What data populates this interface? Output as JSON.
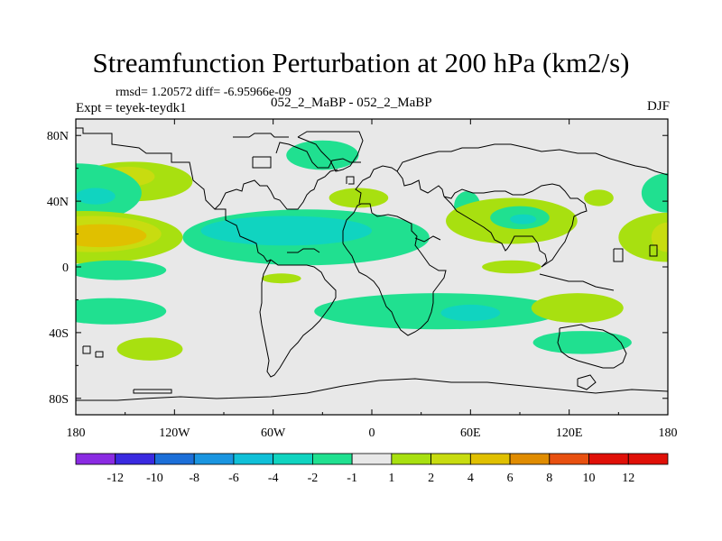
{
  "chart_data": {
    "type": "heatmap",
    "title": "Streamfunction Perturbation at 200 hPa (km2/s)",
    "stats_line": "rmsd= 1.20572 diff= -6.95966e-09",
    "experiment_label": "Expt = teyek-teydk1",
    "center_label": "052_2_MaBP - 052_2_MaBP",
    "season": "DJF",
    "x_ticks": [
      "180",
      "120W",
      "60W",
      "0",
      "60E",
      "120E",
      "180"
    ],
    "x_tick_values": [
      -180,
      -120,
      -60,
      0,
      60,
      120,
      180
    ],
    "y_ticks": [
      "80N",
      "40N",
      "0",
      "40S",
      "80S"
    ],
    "y_tick_values": [
      80,
      40,
      0,
      -40,
      -80
    ],
    "xlim": [
      -180,
      180
    ],
    "ylim": [
      -90,
      90
    ],
    "colorbar": {
      "labels": [
        "-12",
        "-10",
        "-8",
        "-6",
        "-4",
        "-2",
        "-1",
        "1",
        "2",
        "4",
        "6",
        "8",
        "10",
        "12"
      ],
      "colors": [
        "#8a2be2",
        "#3a2ae0",
        "#1c6fd8",
        "#1a95e0",
        "#10c0d8",
        "#10d4c0",
        "#20e090",
        "#e8e8e8",
        "#a8e010",
        "#c8dc10",
        "#e0c000",
        "#e08c00",
        "#e85010",
        "#e01008"
      ]
    },
    "anomalies": [
      {
        "name": "north-pacific-positive-outer",
        "lon": -145,
        "lat": 52,
        "rlon": 36,
        "rlat": 12,
        "level": 1
      },
      {
        "name": "north-pacific-positive-inner",
        "lon": -148,
        "lat": 55,
        "rlon": 16,
        "rlat": 6,
        "level": 2
      },
      {
        "name": "north-pacific-negative-outer",
        "lon": -180,
        "lat": 45,
        "rlon": 40,
        "rlat": 18,
        "level": -1
      },
      {
        "name": "north-pacific-negative-inner",
        "lon": -168,
        "lat": 43,
        "rlon": 12,
        "rlat": 5,
        "level": -2
      },
      {
        "name": "eastern-pacific-positive-outer",
        "lon": -175,
        "lat": 18,
        "rlon": 60,
        "rlat": 16,
        "level": 1
      },
      {
        "name": "eastern-pacific-positive-mid",
        "lon": -170,
        "lat": 20,
        "rlon": 42,
        "rlat": 11,
        "level": 2
      },
      {
        "name": "eastern-pacific-positive-inner",
        "lon": -165,
        "lat": 19,
        "rlon": 28,
        "rlat": 7,
        "level": 3
      },
      {
        "name": "atlantic-negative-outer",
        "lon": -40,
        "lat": 18,
        "rlon": 75,
        "rlat": 17,
        "level": -1
      },
      {
        "name": "atlantic-negative-inner",
        "lon": -52,
        "lat": 22,
        "rlon": 52,
        "rlat": 9,
        "level": -2
      },
      {
        "name": "arctic-atlantic-negative",
        "lon": -30,
        "lat": 68,
        "rlon": 22,
        "rlat": 9,
        "level": -1
      },
      {
        "name": "europe-positive",
        "lon": -8,
        "lat": 42,
        "rlon": 18,
        "rlat": 6,
        "level": 1
      },
      {
        "name": "mideast-negative",
        "lon": 58,
        "lat": 37,
        "rlon": 8,
        "rlat": 9,
        "level": -1
      },
      {
        "name": "asia-positive-band",
        "lon": 85,
        "lat": 28,
        "rlon": 40,
        "rlat": 14,
        "level": 1
      },
      {
        "name": "asia-negative",
        "lon": 90,
        "lat": 30,
        "rlon": 18,
        "rlat": 7,
        "level": -1
      },
      {
        "name": "asia-negative-inner",
        "lon": 92,
        "lat": 29,
        "rlon": 8,
        "rlat": 3,
        "level": -2
      },
      {
        "name": "japan-positive",
        "lon": 138,
        "lat": 42,
        "rlon": 9,
        "rlat": 5,
        "level": 1
      },
      {
        "name": "east-edge-negative",
        "lon": 180,
        "lat": 45,
        "rlon": 16,
        "rlat": 12,
        "level": -1
      },
      {
        "name": "east-edge-positive",
        "lon": 180,
        "lat": 18,
        "rlon": 30,
        "rlat": 15,
        "level": 1
      },
      {
        "name": "east-edge-positive-inner",
        "lon": 180,
        "lat": 18,
        "rlon": 10,
        "rlat": 9,
        "level": 2
      },
      {
        "name": "equatorial-indian-positive",
        "lon": 85,
        "lat": 0,
        "rlon": 18,
        "rlat": 4,
        "level": 1
      },
      {
        "name": "south-pacific-negative",
        "lon": -155,
        "lat": -2,
        "rlon": 30,
        "rlat": 6,
        "level": -1
      },
      {
        "name": "south-america-negative",
        "lon": -160,
        "lat": -27,
        "rlon": 35,
        "rlat": 8,
        "level": -1
      },
      {
        "name": "south-atlantic-positive",
        "lon": -55,
        "lat": -7,
        "rlon": 12,
        "rlat": 3,
        "level": 1
      },
      {
        "name": "southern-indian-negative-outer",
        "lon": 40,
        "lat": -27,
        "rlon": 75,
        "rlat": 11,
        "level": -1
      },
      {
        "name": "southern-indian-negative-inner",
        "lon": 60,
        "lat": -28,
        "rlon": 18,
        "rlat": 5,
        "level": -2
      },
      {
        "name": "southwest-pacific-positive",
        "lon": 125,
        "lat": -25,
        "rlon": 28,
        "rlat": 9,
        "level": 1
      },
      {
        "name": "southern-ocean-positive",
        "lon": -135,
        "lat": -50,
        "rlon": 20,
        "rlat": 7,
        "level": 1
      },
      {
        "name": "australia-south-negative",
        "lon": 128,
        "lat": -46,
        "rlon": 30,
        "rlat": 7,
        "level": -1
      }
    ]
  }
}
